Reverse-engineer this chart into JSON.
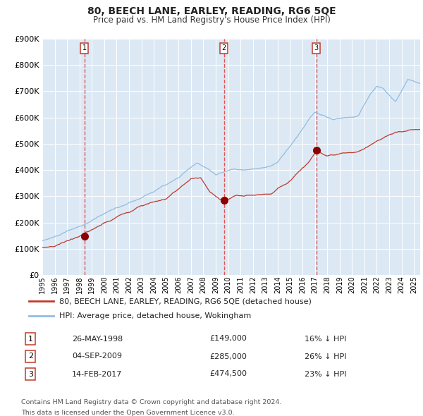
{
  "title": "80, BEECH LANE, EARLEY, READING, RG6 5QE",
  "subtitle": "Price paid vs. HM Land Registry's House Price Index (HPI)",
  "background_color": "#dce9f5",
  "hpi_color": "#92bce0",
  "price_color": "#c0392b",
  "marker_color": "#8b0000",
  "dashed_line_color": "#e05555",
  "ylim": [
    0,
    900000
  ],
  "yticks": [
    0,
    100000,
    200000,
    300000,
    400000,
    500000,
    600000,
    700000,
    800000,
    900000
  ],
  "xlim_start": 1995.0,
  "xlim_end": 2025.5,
  "xtick_years": [
    1995,
    1996,
    1997,
    1998,
    1999,
    2000,
    2001,
    2002,
    2003,
    2004,
    2005,
    2006,
    2007,
    2008,
    2009,
    2010,
    2011,
    2012,
    2013,
    2014,
    2015,
    2016,
    2017,
    2018,
    2019,
    2020,
    2021,
    2022,
    2023,
    2024,
    2025
  ],
  "sale1_x": 1998.4,
  "sale1_y": 149000,
  "sale2_x": 2009.67,
  "sale2_y": 285000,
  "sale3_x": 2017.12,
  "sale3_y": 474500,
  "legend_house_label": "80, BEECH LANE, EARLEY, READING, RG6 5QE (detached house)",
  "legend_hpi_label": "HPI: Average price, detached house, Wokingham",
  "table_rows": [
    {
      "num": "1",
      "date": "26-MAY-1998",
      "price": "£149,000",
      "hpi": "16% ↓ HPI"
    },
    {
      "num": "2",
      "date": "04-SEP-2009",
      "price": "£285,000",
      "hpi": "26% ↓ HPI"
    },
    {
      "num": "3",
      "date": "14-FEB-2017",
      "price": "£474,500",
      "hpi": "23% ↓ HPI"
    }
  ],
  "footer1": "Contains HM Land Registry data © Crown copyright and database right 2024.",
  "footer2": "This data is licensed under the Open Government Licence v3.0."
}
